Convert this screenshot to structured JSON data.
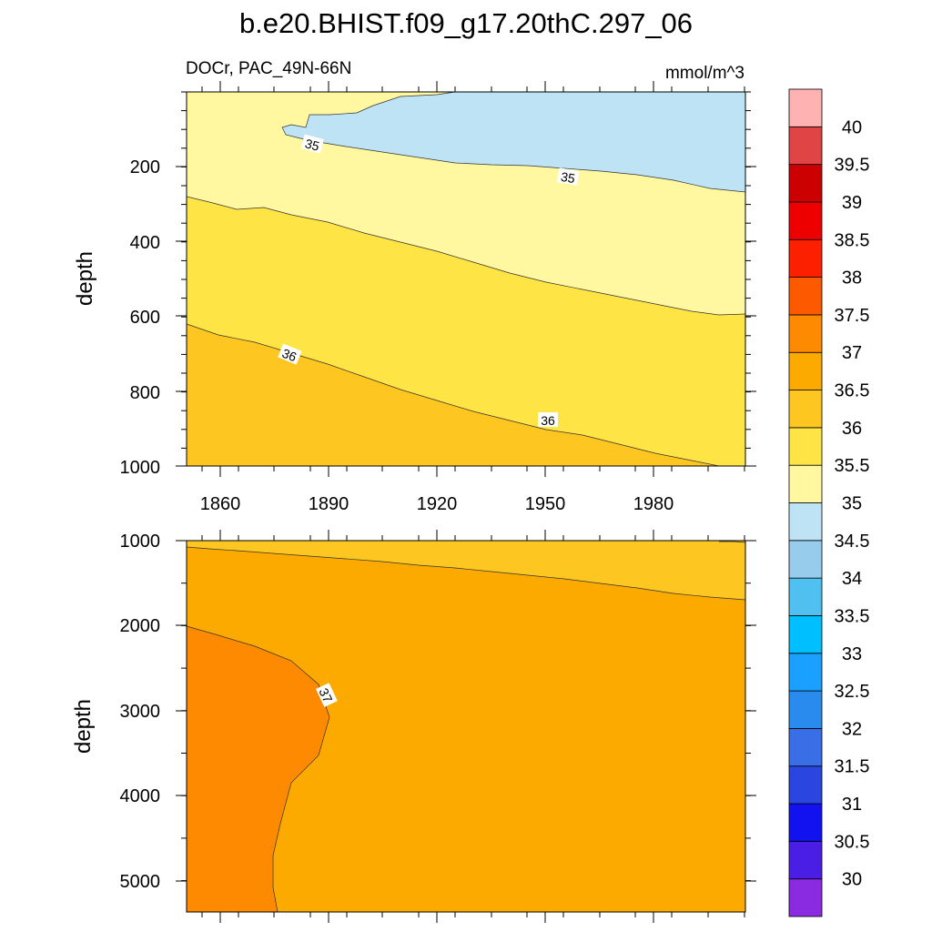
{
  "chart_data": {
    "type": "contour",
    "title": "b.e20.BHIST.f09_g17.20thC.297_06",
    "subtitle_left": "DOCr, PAC_49N-66N",
    "subtitle_right": "mmol/m^3",
    "colorbar": {
      "levels": [
        "30",
        "30.5",
        "31",
        "31.5",
        "32",
        "32.5",
        "33",
        "33.5",
        "34",
        "34.5",
        "35",
        "35.5",
        "36",
        "36.5",
        "37",
        "37.5",
        "38",
        "38.5",
        "39",
        "39.5",
        "40"
      ],
      "colors": [
        "#8a2be2",
        "#4b1ee6",
        "#1212f0",
        "#2a45e0",
        "#3a6ee6",
        "#2a8bee",
        "#1aa0ff",
        "#00bfff",
        "#50c0f0",
        "#98ccec",
        "#bde3f5",
        "#fff8a0",
        "#fee445",
        "#fec620",
        "#fdaa00",
        "#fd8a00",
        "#fd5a00",
        "#fd2000",
        "#ee0000",
        "#cc0000",
        "#e04444",
        "#ffb2b2"
      ]
    },
    "panels": [
      {
        "ylabel": "depth",
        "yticks": [
          "200",
          "400",
          "600",
          "800",
          "1000"
        ],
        "xticks": [
          "1860",
          "1890",
          "1920",
          "1950",
          "1980"
        ],
        "x_range": [
          1850,
          2005
        ],
        "y_range": [
          0,
          1000
        ],
        "regions": [
          {
            "level": "35.5-36 (upper band)",
            "color": "#fff8a0"
          },
          {
            "level": "34.5-35",
            "color": "#bde3f5"
          },
          {
            "level": "35.5-36",
            "color": "#fee445"
          },
          {
            "level": "36-36.5",
            "color": "#fec620"
          }
        ],
        "contour_labels": [
          {
            "text": "35",
            "x": 1885,
            "y": 140
          },
          {
            "text": "35",
            "x": 1957,
            "y": 230
          },
          {
            "text": "36",
            "x": 1879,
            "y": 705
          },
          {
            "text": "36",
            "x": 1951,
            "y": 880
          }
        ]
      },
      {
        "ylabel": "depth",
        "yticks": [
          "1000",
          "2000",
          "3000",
          "4000",
          "5000"
        ],
        "x_range": [
          1850,
          2005
        ],
        "y_range": [
          1000,
          5375
        ],
        "regions": [
          {
            "level": "36-36.5",
            "color": "#fec620"
          },
          {
            "level": "36.5-37",
            "color": "#fdaa00"
          },
          {
            "level": "37-37.5",
            "color": "#fd8a00"
          }
        ],
        "contour_labels": [
          {
            "text": "37",
            "x": 1889,
            "y": 2850
          }
        ]
      }
    ]
  }
}
